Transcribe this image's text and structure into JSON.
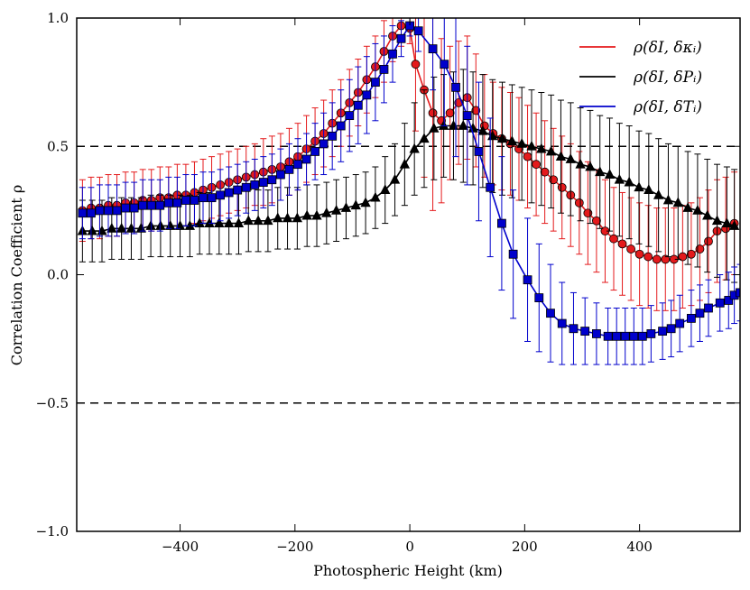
{
  "chart_data": {
    "type": "line",
    "xlabel": "Photospheric Height (km)",
    "ylabel": "Correlation Coefficient ρ",
    "xlim": [
      -580,
      575
    ],
    "ylim": [
      -1.0,
      1.0
    ],
    "xticks": [
      -400,
      -200,
      0,
      200,
      400
    ],
    "yticks": [
      -1.0,
      -0.5,
      0.0,
      0.5,
      1.0
    ],
    "xtick_labels": [
      "−400",
      "−200",
      "0",
      "200",
      "400"
    ],
    "ytick_labels": [
      "−1.0",
      "−0.5",
      "0.0",
      "0.5",
      "1.0"
    ],
    "reference_lines": [
      0.5,
      -0.5
    ],
    "legend_position": "top-right",
    "series": [
      {
        "name": "ρ(δI, δκᵢ)",
        "color": "#e41a1c",
        "marker": "circle",
        "x": [
          -570,
          -555,
          -540,
          -525,
          -510,
          -495,
          -480,
          -465,
          -450,
          -435,
          -420,
          -405,
          -390,
          -375,
          -360,
          -345,
          -330,
          -315,
          -300,
          -285,
          -270,
          -255,
          -240,
          -225,
          -210,
          -195,
          -180,
          -165,
          -150,
          -135,
          -120,
          -105,
          -90,
          -75,
          -60,
          -45,
          -30,
          -15,
          0,
          10,
          25,
          40,
          55,
          70,
          85,
          100,
          115,
          130,
          145,
          160,
          175,
          190,
          205,
          220,
          235,
          250,
          265,
          280,
          295,
          310,
          325,
          340,
          355,
          370,
          385,
          400,
          415,
          430,
          445,
          460,
          475,
          490,
          505,
          520,
          535,
          550,
          565
        ],
        "values": [
          0.25,
          0.26,
          0.26,
          0.27,
          0.27,
          0.28,
          0.28,
          0.29,
          0.29,
          0.3,
          0.3,
          0.31,
          0.31,
          0.32,
          0.33,
          0.34,
          0.35,
          0.36,
          0.37,
          0.38,
          0.39,
          0.4,
          0.41,
          0.42,
          0.44,
          0.46,
          0.49,
          0.52,
          0.55,
          0.59,
          0.63,
          0.67,
          0.71,
          0.76,
          0.81,
          0.87,
          0.93,
          0.97,
          0.96,
          0.82,
          0.72,
          0.63,
          0.6,
          0.63,
          0.67,
          0.69,
          0.64,
          0.58,
          0.55,
          0.53,
          0.51,
          0.49,
          0.46,
          0.43,
          0.4,
          0.37,
          0.34,
          0.31,
          0.28,
          0.24,
          0.21,
          0.17,
          0.14,
          0.12,
          0.1,
          0.08,
          0.07,
          0.06,
          0.06,
          0.06,
          0.07,
          0.08,
          0.1,
          0.13,
          0.17,
          0.18,
          0.2
        ],
        "errors": [
          0.12,
          0.12,
          0.12,
          0.12,
          0.12,
          0.12,
          0.12,
          0.12,
          0.12,
          0.12,
          0.12,
          0.12,
          0.12,
          0.12,
          0.12,
          0.12,
          0.12,
          0.12,
          0.12,
          0.12,
          0.12,
          0.13,
          0.13,
          0.13,
          0.13,
          0.13,
          0.13,
          0.13,
          0.13,
          0.13,
          0.13,
          0.13,
          0.13,
          0.13,
          0.12,
          0.12,
          0.1,
          0.08,
          0.06,
          0.26,
          0.34,
          0.38,
          0.32,
          0.26,
          0.24,
          0.24,
          0.22,
          0.2,
          0.2,
          0.2,
          0.2,
          0.2,
          0.2,
          0.2,
          0.2,
          0.2,
          0.2,
          0.2,
          0.2,
          0.2,
          0.2,
          0.2,
          0.2,
          0.2,
          0.2,
          0.2,
          0.2,
          0.2,
          0.2,
          0.2,
          0.2,
          0.2,
          0.2,
          0.2,
          0.2,
          0.2,
          0.2
        ]
      },
      {
        "name": "ρ(δI, δPᵢ)",
        "color": "#000000",
        "marker": "triangle",
        "x": [
          -570,
          -553,
          -536,
          -519,
          -502,
          -485,
          -468,
          -451,
          -434,
          -417,
          -400,
          -383,
          -366,
          -349,
          -332,
          -315,
          -298,
          -281,
          -264,
          -247,
          -230,
          -213,
          -196,
          -179,
          -162,
          -145,
          -128,
          -111,
          -94,
          -77,
          -60,
          -43,
          -26,
          -9,
          8,
          25,
          42,
          59,
          76,
          93,
          110,
          127,
          144,
          161,
          178,
          195,
          212,
          229,
          246,
          263,
          280,
          297,
          314,
          331,
          348,
          365,
          382,
          399,
          416,
          433,
          450,
          467,
          484,
          501,
          518,
          535,
          552,
          565
        ],
        "values": [
          0.17,
          0.17,
          0.17,
          0.18,
          0.18,
          0.18,
          0.18,
          0.19,
          0.19,
          0.19,
          0.19,
          0.19,
          0.2,
          0.2,
          0.2,
          0.2,
          0.2,
          0.21,
          0.21,
          0.21,
          0.22,
          0.22,
          0.22,
          0.23,
          0.23,
          0.24,
          0.25,
          0.26,
          0.27,
          0.28,
          0.3,
          0.33,
          0.37,
          0.43,
          0.49,
          0.53,
          0.57,
          0.58,
          0.58,
          0.58,
          0.57,
          0.56,
          0.54,
          0.53,
          0.52,
          0.51,
          0.5,
          0.49,
          0.48,
          0.46,
          0.45,
          0.43,
          0.42,
          0.4,
          0.39,
          0.37,
          0.36,
          0.34,
          0.33,
          0.31,
          0.29,
          0.28,
          0.26,
          0.25,
          0.23,
          0.21,
          0.2,
          0.19
        ],
        "errors": [
          0.12,
          0.12,
          0.12,
          0.12,
          0.12,
          0.12,
          0.12,
          0.12,
          0.12,
          0.12,
          0.12,
          0.12,
          0.12,
          0.12,
          0.12,
          0.12,
          0.12,
          0.12,
          0.12,
          0.12,
          0.12,
          0.12,
          0.12,
          0.12,
          0.12,
          0.12,
          0.12,
          0.12,
          0.12,
          0.12,
          0.12,
          0.13,
          0.14,
          0.16,
          0.18,
          0.19,
          0.2,
          0.2,
          0.21,
          0.22,
          0.22,
          0.22,
          0.22,
          0.22,
          0.22,
          0.22,
          0.22,
          0.22,
          0.22,
          0.22,
          0.22,
          0.22,
          0.22,
          0.22,
          0.22,
          0.22,
          0.22,
          0.22,
          0.22,
          0.22,
          0.22,
          0.22,
          0.22,
          0.22,
          0.22,
          0.22,
          0.22,
          0.22
        ]
      },
      {
        "name": "ρ(δI, δTᵢ)",
        "color": "#0000cc",
        "marker": "square",
        "x": [
          -570,
          -555,
          -540,
          -525,
          -510,
          -495,
          -480,
          -465,
          -450,
          -435,
          -420,
          -405,
          -390,
          -375,
          -360,
          -345,
          -330,
          -315,
          -300,
          -285,
          -270,
          -255,
          -240,
          -225,
          -210,
          -195,
          -180,
          -165,
          -150,
          -135,
          -120,
          -105,
          -90,
          -75,
          -60,
          -45,
          -30,
          -15,
          0,
          15,
          40,
          60,
          80,
          100,
          120,
          140,
          160,
          180,
          205,
          225,
          245,
          265,
          285,
          305,
          325,
          345,
          360,
          375,
          390,
          405,
          420,
          440,
          455,
          470,
          490,
          505,
          520,
          540,
          555,
          565,
          575
        ],
        "values": [
          0.24,
          0.24,
          0.25,
          0.25,
          0.25,
          0.26,
          0.26,
          0.27,
          0.27,
          0.27,
          0.28,
          0.28,
          0.29,
          0.29,
          0.3,
          0.3,
          0.31,
          0.32,
          0.33,
          0.34,
          0.35,
          0.36,
          0.37,
          0.39,
          0.41,
          0.43,
          0.45,
          0.48,
          0.51,
          0.54,
          0.58,
          0.62,
          0.66,
          0.7,
          0.75,
          0.8,
          0.86,
          0.92,
          0.97,
          0.95,
          0.88,
          0.82,
          0.73,
          0.62,
          0.48,
          0.34,
          0.2,
          0.08,
          -0.02,
          -0.09,
          -0.15,
          -0.19,
          -0.21,
          -0.22,
          -0.23,
          -0.24,
          -0.24,
          -0.24,
          -0.24,
          -0.24,
          -0.23,
          -0.22,
          -0.21,
          -0.19,
          -0.17,
          -0.15,
          -0.13,
          -0.11,
          -0.1,
          -0.08,
          -0.07
        ],
        "errors": [
          0.1,
          0.1,
          0.1,
          0.1,
          0.1,
          0.1,
          0.1,
          0.1,
          0.1,
          0.1,
          0.1,
          0.1,
          0.1,
          0.1,
          0.1,
          0.1,
          0.1,
          0.1,
          0.1,
          0.1,
          0.1,
          0.1,
          0.1,
          0.1,
          0.1,
          0.1,
          0.1,
          0.11,
          0.12,
          0.13,
          0.14,
          0.14,
          0.15,
          0.15,
          0.15,
          0.13,
          0.11,
          0.07,
          0.04,
          0.08,
          0.16,
          0.24,
          0.27,
          0.27,
          0.27,
          0.27,
          0.26,
          0.25,
          0.24,
          0.21,
          0.19,
          0.16,
          0.14,
          0.13,
          0.12,
          0.11,
          0.11,
          0.11,
          0.11,
          0.11,
          0.11,
          0.11,
          0.11,
          0.11,
          0.11,
          0.11,
          0.11,
          0.11,
          0.11,
          0.11,
          0.11
        ]
      }
    ]
  }
}
